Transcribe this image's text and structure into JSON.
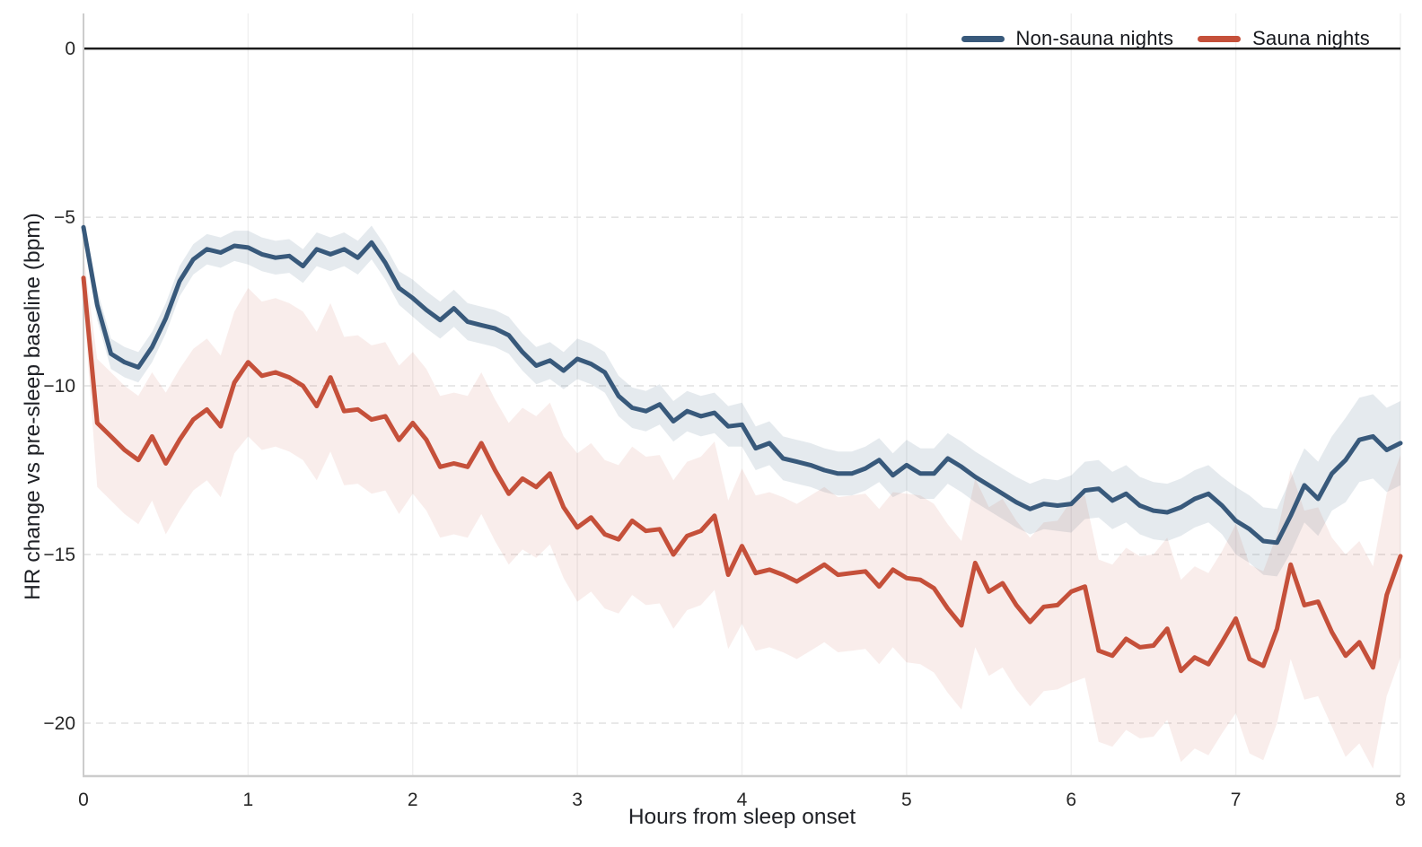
{
  "figure": {
    "background_color": "#ffffff",
    "text_color": "#262626",
    "spine_color": "#cccccc",
    "zero_line_color": "#1c1c1c",
    "h_grid_color": "#e1e1e1",
    "v_grid_color": "#f0f0f0"
  },
  "chart_data": {
    "type": "line",
    "title": "",
    "xlabel": "Hours from sleep onset",
    "ylabel": "HR change vs pre-sleep baseline (bpm)",
    "xlim": [
      0,
      8
    ],
    "ylim": [
      -21.57,
      1.04
    ],
    "xticks": [
      0,
      1,
      2,
      3,
      4,
      5,
      6,
      7,
      8
    ],
    "yticks": [
      0,
      -5,
      -10,
      -15,
      -20
    ],
    "ytick_labels": [
      "0",
      "−5",
      "−10",
      "−15",
      "−20"
    ],
    "grid": {
      "horizontal": "dashed",
      "vertical": "faint-solid"
    },
    "legend_position": "top-right-horizontal",
    "zero_reference_line": 0,
    "x_hours": [
      0,
      0.0833,
      0.1667,
      0.25,
      0.3333,
      0.4167,
      0.5,
      0.5833,
      0.6667,
      0.75,
      0.8333,
      0.9167,
      1,
      1.0833,
      1.1667,
      1.25,
      1.3333,
      1.4167,
      1.5,
      1.5833,
      1.6667,
      1.75,
      1.8333,
      1.9167,
      2,
      2.0833,
      2.1667,
      2.25,
      2.3333,
      2.4167,
      2.5,
      2.5833,
      2.6667,
      2.75,
      2.8333,
      2.9167,
      3,
      3.0833,
      3.1667,
      3.25,
      3.3333,
      3.4167,
      3.5,
      3.5833,
      3.6667,
      3.75,
      3.8333,
      3.9167,
      4,
      4.0833,
      4.1667,
      4.25,
      4.3333,
      4.4167,
      4.5,
      4.5833,
      4.6667,
      4.75,
      4.8333,
      4.9167,
      5,
      5.0833,
      5.1667,
      5.25,
      5.3333,
      5.4167,
      5.5,
      5.5833,
      5.6667,
      5.75,
      5.8333,
      5.9167,
      6,
      6.0833,
      6.1667,
      6.25,
      6.3333,
      6.4167,
      6.5,
      6.5833,
      6.6667,
      6.75,
      6.8333,
      6.9167,
      7,
      7.0833,
      7.1667,
      7.25,
      7.3333,
      7.4167,
      7.5,
      7.5833,
      7.6667,
      7.75,
      7.8333,
      7.9167,
      8
    ],
    "series": [
      {
        "name": "Non-sauna nights",
        "color": "#38597b",
        "band_fill": "rgba(56,89,123,0.13)",
        "values": [
          -5.3,
          -7.6,
          -9.05,
          -9.3,
          -9.45,
          -8.85,
          -8.0,
          -6.9,
          -6.25,
          -5.95,
          -6.05,
          -5.85,
          -5.9,
          -6.1,
          -6.2,
          -6.15,
          -6.45,
          -5.95,
          -6.1,
          -5.95,
          -6.2,
          -5.75,
          -6.35,
          -7.1,
          -7.4,
          -7.75,
          -8.05,
          -7.7,
          -8.1,
          -8.2,
          -8.3,
          -8.5,
          -9.0,
          -9.4,
          -9.25,
          -9.55,
          -9.2,
          -9.35,
          -9.6,
          -10.3,
          -10.65,
          -10.75,
          -10.55,
          -11.05,
          -10.75,
          -10.9,
          -10.8,
          -11.2,
          -11.15,
          -11.85,
          -11.7,
          -12.15,
          -12.25,
          -12.35,
          -12.5,
          -12.6,
          -12.6,
          -12.45,
          -12.2,
          -12.65,
          -12.35,
          -12.6,
          -12.6,
          -12.15,
          -12.4,
          -12.7,
          -12.95,
          -13.2,
          -13.45,
          -13.65,
          -13.5,
          -13.55,
          -13.5,
          -13.1,
          -13.05,
          -13.4,
          -13.2,
          -13.55,
          -13.7,
          -13.75,
          -13.6,
          -13.35,
          -13.2,
          -13.55,
          -14.0,
          -14.25,
          -14.6,
          -14.65,
          -13.85,
          -12.95,
          -13.35,
          -12.6,
          -12.2,
          -11.6,
          -11.5,
          -11.9,
          -11.7
        ],
        "band_half_width": [
          0.3,
          0.45,
          0.45,
          0.45,
          0.45,
          0.45,
          0.45,
          0.45,
          0.45,
          0.45,
          0.45,
          0.45,
          0.5,
          0.5,
          0.5,
          0.5,
          0.5,
          0.5,
          0.5,
          0.5,
          0.5,
          0.5,
          0.5,
          0.5,
          0.55,
          0.55,
          0.55,
          0.55,
          0.55,
          0.55,
          0.55,
          0.55,
          0.55,
          0.55,
          0.55,
          0.55,
          0.6,
          0.6,
          0.6,
          0.6,
          0.6,
          0.6,
          0.6,
          0.6,
          0.6,
          0.6,
          0.6,
          0.6,
          0.65,
          0.65,
          0.65,
          0.65,
          0.65,
          0.65,
          0.65,
          0.65,
          0.65,
          0.65,
          0.65,
          0.65,
          0.75,
          0.75,
          0.75,
          0.75,
          0.75,
          0.75,
          0.75,
          0.75,
          0.75,
          0.75,
          0.75,
          0.75,
          0.85,
          0.85,
          0.85,
          0.85,
          0.85,
          0.85,
          0.85,
          0.85,
          0.85,
          0.85,
          0.85,
          0.85,
          1.0,
          1.0,
          1.0,
          1.0,
          1.1,
          1.1,
          1.1,
          1.1,
          1.25,
          1.25,
          1.25,
          1.25,
          1.25
        ]
      },
      {
        "name": "Sauna nights",
        "color": "#c5503a",
        "band_fill": "rgba(197,80,58,0.10)",
        "values": [
          -6.8,
          -11.1,
          -11.5,
          -11.9,
          -12.2,
          -11.5,
          -12.3,
          -11.6,
          -11.0,
          -10.7,
          -11.2,
          -9.9,
          -9.3,
          -9.7,
          -9.6,
          -9.75,
          -10.0,
          -10.6,
          -9.75,
          -10.75,
          -10.7,
          -11.0,
          -10.9,
          -11.6,
          -11.1,
          -11.6,
          -12.4,
          -12.3,
          -12.4,
          -11.7,
          -12.5,
          -13.2,
          -12.75,
          -13.0,
          -12.6,
          -13.6,
          -14.2,
          -13.9,
          -14.4,
          -14.55,
          -14.0,
          -14.3,
          -14.25,
          -15.0,
          -14.45,
          -14.3,
          -13.85,
          -15.6,
          -14.75,
          -15.55,
          -15.45,
          -15.6,
          -15.8,
          -15.55,
          -15.3,
          -15.6,
          -15.55,
          -15.5,
          -15.95,
          -15.45,
          -15.7,
          -15.75,
          -16.0,
          -16.6,
          -17.1,
          -15.25,
          -16.1,
          -15.85,
          -16.5,
          -17.0,
          -16.55,
          -16.5,
          -16.1,
          -15.95,
          -17.85,
          -18.0,
          -17.5,
          -17.75,
          -17.7,
          -17.2,
          -18.45,
          -18.05,
          -18.25,
          -17.6,
          -16.9,
          -18.1,
          -18.3,
          -17.2,
          -15.3,
          -16.5,
          -16.4,
          -17.3,
          -18.0,
          -17.6,
          -18.35,
          -16.2,
          -15.05
        ],
        "band_half_width": [
          0.7,
          1.9,
          1.9,
          1.9,
          1.9,
          1.9,
          2.1,
          2.1,
          2.1,
          2.1,
          2.1,
          2.1,
          2.2,
          2.2,
          2.2,
          2.2,
          2.2,
          2.2,
          2.2,
          2.2,
          2.2,
          2.2,
          2.2,
          2.2,
          2.1,
          2.1,
          2.1,
          2.1,
          2.1,
          2.1,
          2.1,
          2.1,
          2.1,
          2.1,
          2.1,
          2.1,
          2.2,
          2.2,
          2.2,
          2.2,
          2.2,
          2.2,
          2.2,
          2.2,
          2.2,
          2.2,
          2.2,
          2.2,
          2.3,
          2.3,
          2.3,
          2.3,
          2.3,
          2.3,
          2.3,
          2.3,
          2.3,
          2.3,
          2.3,
          2.3,
          2.5,
          2.5,
          2.5,
          2.5,
          2.5,
          2.5,
          2.5,
          2.5,
          2.5,
          2.5,
          2.5,
          2.5,
          2.7,
          2.7,
          2.7,
          2.7,
          2.7,
          2.7,
          2.7,
          2.7,
          2.7,
          2.7,
          2.7,
          2.7,
          2.8,
          2.8,
          2.8,
          2.8,
          2.8,
          2.8,
          2.8,
          2.8,
          3.0,
          3.0,
          3.0,
          3.0,
          3.0
        ]
      }
    ]
  }
}
